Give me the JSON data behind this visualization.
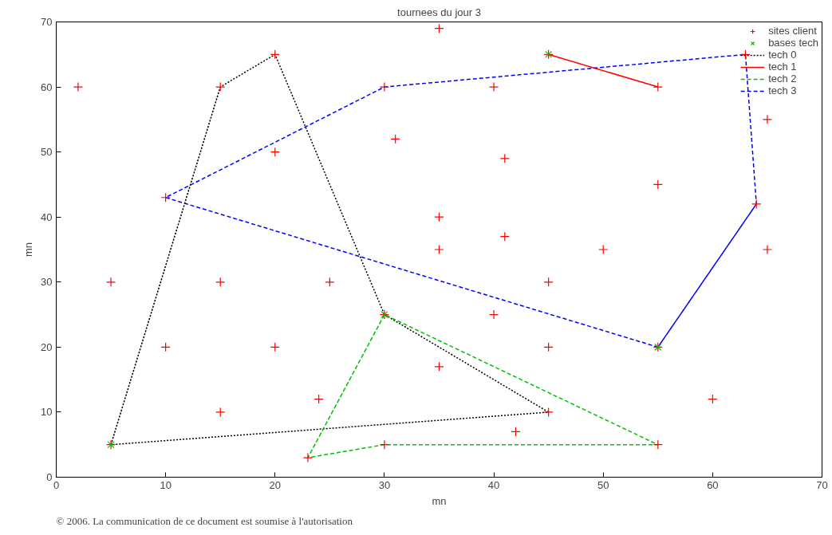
{
  "chart_data": {
    "type": "line",
    "title": "tournees du jour 3",
    "xlabel": "mn",
    "ylabel": "mn",
    "xlim": [
      0,
      70
    ],
    "ylim": [
      0,
      70
    ],
    "xticks": [
      0,
      10,
      20,
      30,
      40,
      50,
      60,
      70
    ],
    "yticks": [
      0,
      10,
      20,
      30,
      40,
      50,
      60,
      70
    ],
    "grid": false,
    "legend": "top right",
    "annotations": [
      "© 2006. La communication de ce document est soumise à l'autorisation"
    ],
    "series": [
      {
        "name": "sites client",
        "type": "scatter",
        "marker": "cross",
        "color": "#ff0000",
        "x": [
          2,
          15,
          20,
          35,
          30,
          40,
          45,
          55,
          63,
          65,
          31,
          20,
          41,
          55,
          10,
          64,
          35,
          41,
          35,
          50,
          65,
          5,
          15,
          25,
          45,
          30,
          40,
          10,
          20,
          45,
          55,
          35,
          60,
          24,
          15,
          45,
          42,
          5,
          30,
          55,
          23
        ],
        "values": [
          60,
          60,
          65,
          69,
          60,
          60,
          65,
          60,
          65,
          55,
          52,
          50,
          49,
          45,
          43,
          42,
          40,
          37,
          35,
          35,
          35,
          30,
          30,
          30,
          30,
          25,
          25,
          20,
          20,
          20,
          20,
          17,
          12,
          12,
          10,
          10,
          7,
          5,
          5,
          5,
          3
        ]
      },
      {
        "name": "bases tech",
        "type": "scatter",
        "marker": "x",
        "color": "#00c000",
        "x": [
          5,
          45,
          30,
          55
        ],
        "values": [
          5,
          65,
          25,
          20
        ]
      },
      {
        "name": "tech 0",
        "line_style": "dotted",
        "color": "#000000",
        "x": [
          5,
          15,
          20,
          30,
          45,
          5
        ],
        "values": [
          5,
          60,
          65,
          25,
          10,
          5
        ]
      },
      {
        "name": "tech 1",
        "line_style": "solid",
        "color": "#ff0000",
        "x": [
          45,
          55
        ],
        "values": [
          65,
          60
        ]
      },
      {
        "name": "tech 2",
        "line_style": "dashed",
        "color": "#00c000",
        "x": [
          30,
          23,
          30,
          55,
          30
        ],
        "values": [
          25,
          3,
          5,
          5,
          25
        ]
      },
      {
        "name": "tech 3",
        "line_style": "dashed",
        "color": "#0000ff",
        "x": [
          55,
          64,
          63,
          30,
          10,
          55
        ],
        "values": [
          20,
          42,
          65,
          60,
          43,
          20
        ]
      }
    ]
  }
}
